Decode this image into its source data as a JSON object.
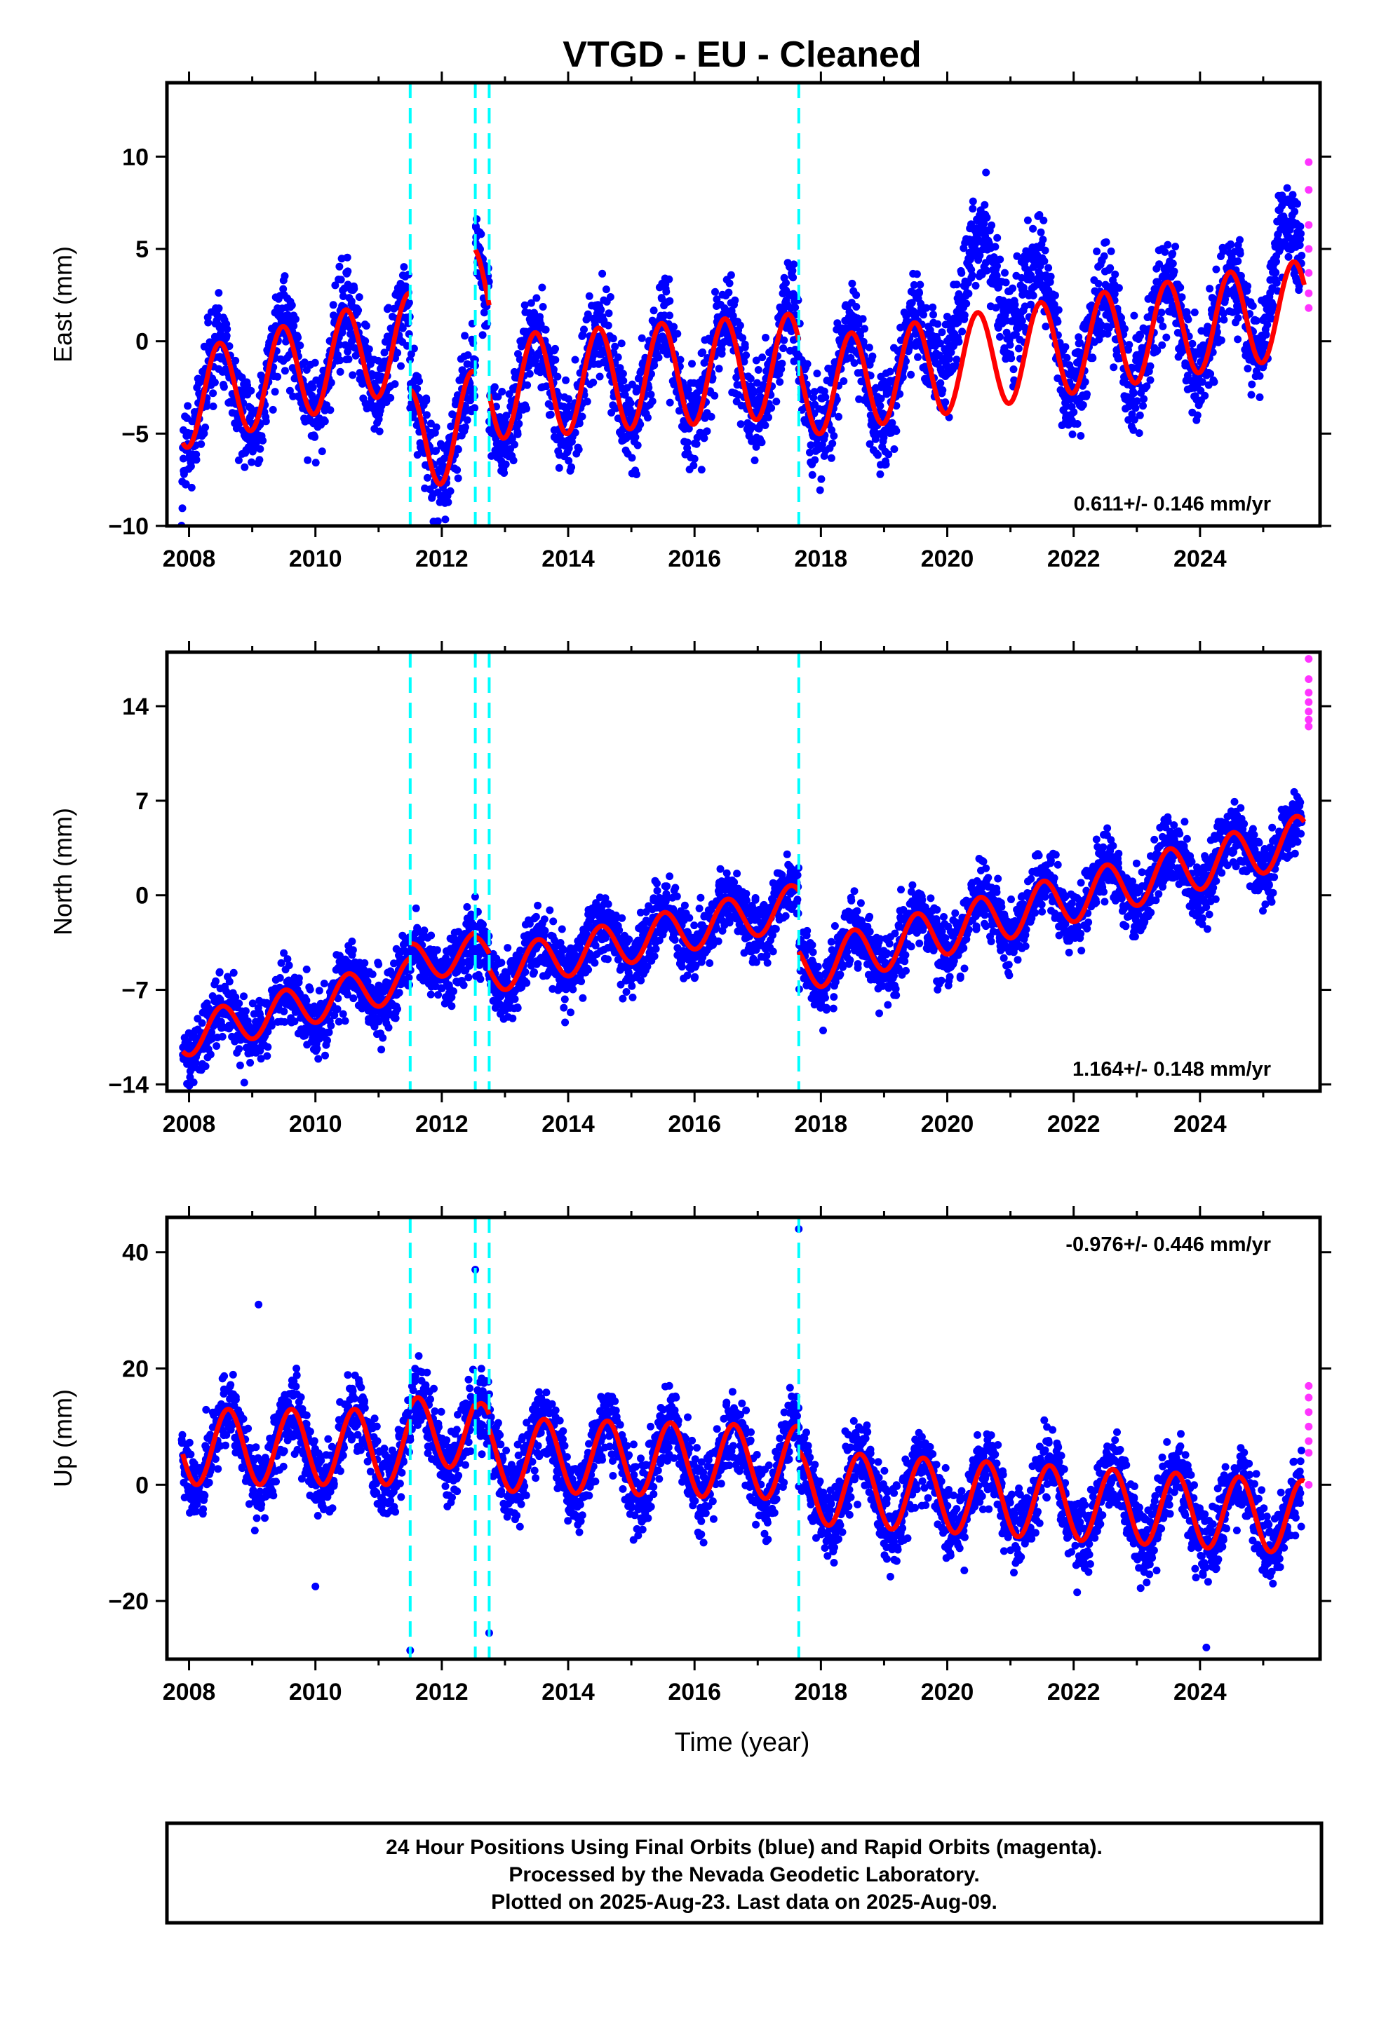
{
  "chart_data": {
    "type": "scatter",
    "title": "VTGD  - EU - Cleaned",
    "xlabel": "Time (year)",
    "xlim": [
      2007.65,
      2025.9
    ],
    "xticks": [
      2008,
      2010,
      2012,
      2014,
      2016,
      2018,
      2020,
      2022,
      2024
    ],
    "xtick_labels": [
      "2008",
      "2010",
      "2012",
      "2014",
      "2016",
      "2018",
      "2020",
      "2022",
      "2024"
    ],
    "equipment_changes": [
      2011.5,
      2012.53,
      2012.75,
      2017.65
    ],
    "colors": {
      "final": "#0000ff",
      "rapid": "#ff33ff",
      "model": "#ff0000",
      "breaks": "#00ffff"
    },
    "panels": [
      {
        "name": "east",
        "ylabel": "East (mm)",
        "ylim": [
          -10,
          14
        ],
        "yticks": [
          -10,
          -5,
          0,
          5,
          10
        ],
        "ytick_labels": [
          "−10",
          "−5",
          "0",
          "5",
          "10"
        ],
        "rate_label": "0.611+/- 0.146 mm/yr",
        "rate_position": "bottom-right",
        "segments": [
          {
            "start": 2007.9,
            "end": 2011.5,
            "offset": -1.6,
            "trend": 0.9,
            "amplitude": 2.6,
            "phase_peak": 0.48
          },
          {
            "start": 2011.5,
            "end": 2012.53,
            "offset": -4.9,
            "trend": 1.0,
            "amplitude": 2.8,
            "phase_peak": 0.48
          },
          {
            "start": 2012.53,
            "end": 2012.75,
            "offset": 2.3,
            "trend": 0.0,
            "amplitude": 2.8,
            "phase_peak": 0.48
          },
          {
            "start": 2012.75,
            "end": 2017.65,
            "offset": -1.9,
            "trend": 0.25,
            "amplitude": 2.8,
            "phase_peak": 0.48
          },
          {
            "start": 2017.65,
            "end": 2025.65,
            "offset": -0.4,
            "trend": 0.55,
            "amplitude": 2.6,
            "phase_peak": 0.48
          }
        ],
        "noise": 1.25,
        "anomalies": [
          {
            "start": 2019.6,
            "end": 2021.8,
            "shift": 4.5
          },
          {
            "start": 2024.95,
            "end": 2025.6,
            "shift": 3.5
          }
        ],
        "rapid_values": [
          9.7,
          8.2,
          6.3,
          5.0,
          3.7,
          2.6,
          1.8
        ]
      },
      {
        "name": "north",
        "ylabel": "North (mm)",
        "ylim": [
          -14.5,
          18
        ],
        "yticks": [
          -14,
          -7,
          0,
          7,
          14
        ],
        "ytick_labels": [
          "−14",
          "−7",
          "0",
          "7",
          "14"
        ],
        "rate_label": "1.164+/- 0.148 mm/yr",
        "rate_position": "bottom-right",
        "segments": [
          {
            "start": 2007.9,
            "end": 2011.5,
            "offset": -8.3,
            "trend": 1.2,
            "amplitude": 1.5,
            "phase_peak": 0.52
          },
          {
            "start": 2011.5,
            "end": 2012.53,
            "offset": -4.6,
            "trend": 0.8,
            "amplitude": 1.4,
            "phase_peak": 0.52
          },
          {
            "start": 2012.53,
            "end": 2012.75,
            "offset": -4.5,
            "trend": 0.0,
            "amplitude": 1.4,
            "phase_peak": 0.52
          },
          {
            "start": 2012.75,
            "end": 2017.65,
            "offset": -3.2,
            "trend": 1.0,
            "amplitude": 1.6,
            "phase_peak": 0.52
          },
          {
            "start": 2017.65,
            "end": 2025.65,
            "offset": -0.6,
            "trend": 1.2,
            "amplitude": 1.8,
            "phase_peak": 0.52
          }
        ],
        "noise": 1.2,
        "anomalies": [],
        "rapid_values": [
          17.5,
          16.0,
          15.0,
          14.3,
          13.6,
          13.0,
          12.5
        ]
      },
      {
        "name": "up",
        "ylabel": "Up (mm)",
        "ylim": [
          -30,
          46
        ],
        "yticks": [
          -20,
          0,
          20,
          40
        ],
        "ytick_labels": [
          "−20",
          "0",
          "20",
          "40"
        ],
        "rate_label": "-0.976+/- 0.446 mm/yr",
        "rate_position": "top-right",
        "segments": [
          {
            "start": 2007.9,
            "end": 2011.5,
            "offset": 6.5,
            "trend": 0.0,
            "amplitude": 6.5,
            "phase_peak": 0.62
          },
          {
            "start": 2011.5,
            "end": 2012.53,
            "offset": 9.0,
            "trend": 0.0,
            "amplitude": 6.0,
            "phase_peak": 0.62
          },
          {
            "start": 2012.53,
            "end": 2012.75,
            "offset": 8.0,
            "trend": 0.0,
            "amplitude": 6.0,
            "phase_peak": 0.62
          },
          {
            "start": 2012.75,
            "end": 2017.65,
            "offset": 4.5,
            "trend": -0.3,
            "amplitude": 6.3,
            "phase_peak": 0.62
          },
          {
            "start": 2017.65,
            "end": 2025.65,
            "offset": -3.0,
            "trend": -0.65,
            "amplitude": 6.3,
            "phase_peak": 0.62
          }
        ],
        "noise": 3.2,
        "anomalies": [],
        "outliers": [
          [
            2009.1,
            31
          ],
          [
            2012.53,
            37
          ],
          [
            2017.65,
            44
          ],
          [
            2011.5,
            -28.5
          ],
          [
            2012.75,
            -25.5
          ],
          [
            2010.0,
            -17.5
          ],
          [
            2024.1,
            -28
          ]
        ],
        "rapid_values": [
          17,
          15,
          12.5,
          10,
          7.5,
          5.5,
          0
        ]
      }
    ]
  },
  "footer": {
    "line1": "24 Hour Positions Using Final Orbits (blue) and Rapid Orbits (magenta).",
    "line2": "Processed by the Nevada Geodetic Laboratory.",
    "line3": "Plotted on 2025-Aug-23. Last data on 2025-Aug-09."
  }
}
